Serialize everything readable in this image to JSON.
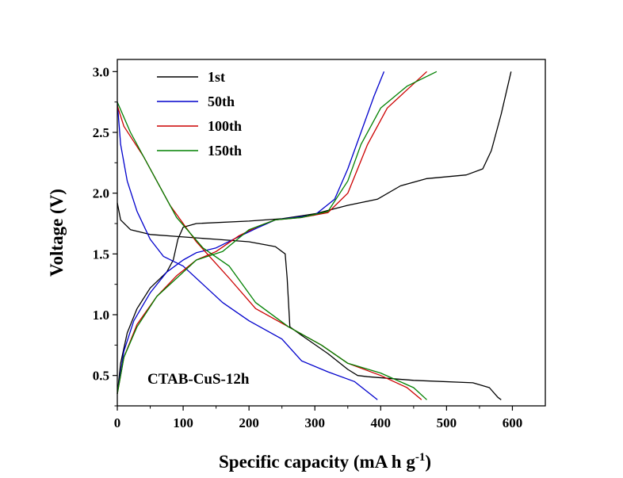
{
  "chart_data": {
    "type": "line",
    "xlabel": "Specific capacity (mA h g",
    "xlabel_sup": "-1",
    "xlabel_suffix": ")",
    "ylabel": "Voltage (V)",
    "xlim": [
      0,
      650
    ],
    "ylim": [
      0.25,
      3.1
    ],
    "xticks": [
      0,
      100,
      200,
      300,
      400,
      500,
      600
    ],
    "xtick_labels": [
      "0",
      "100",
      "200",
      "300",
      "400",
      "500",
      "600"
    ],
    "yticks": [
      0.5,
      1.0,
      1.5,
      2.0,
      2.5,
      3.0
    ],
    "ytick_labels": [
      "0.5",
      "1.0",
      "1.5",
      "2.0",
      "2.5",
      "3.0"
    ],
    "grid": false,
    "legend_position": "top-left",
    "annotation": "CTAB-CuS-12h",
    "series": [
      {
        "name": "1st",
        "color": "#000000",
        "discharge": [
          [
            0,
            1.92
          ],
          [
            5,
            1.78
          ],
          [
            20,
            1.7
          ],
          [
            50,
            1.66
          ],
          [
            100,
            1.64
          ],
          [
            150,
            1.62
          ],
          [
            200,
            1.6
          ],
          [
            240,
            1.56
          ],
          [
            255,
            1.5
          ],
          [
            258,
            1.3
          ],
          [
            260,
            1.1
          ],
          [
            262,
            0.9
          ],
          [
            280,
            0.83
          ],
          [
            320,
            0.68
          ],
          [
            350,
            0.55
          ],
          [
            365,
            0.5
          ],
          [
            380,
            0.49
          ],
          [
            450,
            0.46
          ],
          [
            540,
            0.44
          ],
          [
            565,
            0.4
          ],
          [
            578,
            0.32
          ],
          [
            583,
            0.3
          ]
        ],
        "charge": [
          [
            0,
            0.35
          ],
          [
            5,
            0.6
          ],
          [
            15,
            0.85
          ],
          [
            30,
            1.05
          ],
          [
            50,
            1.22
          ],
          [
            75,
            1.35
          ],
          [
            85,
            1.45
          ],
          [
            92,
            1.62
          ],
          [
            100,
            1.72
          ],
          [
            120,
            1.75
          ],
          [
            200,
            1.77
          ],
          [
            250,
            1.79
          ],
          [
            300,
            1.83
          ],
          [
            350,
            1.9
          ],
          [
            395,
            1.95
          ],
          [
            430,
            2.06
          ],
          [
            470,
            2.12
          ],
          [
            530,
            2.15
          ],
          [
            555,
            2.2
          ],
          [
            568,
            2.35
          ],
          [
            583,
            2.65
          ],
          [
            598,
            3.0
          ]
        ]
      },
      {
        "name": "50th",
        "color": "#0000cc",
        "discharge": [
          [
            0,
            2.75
          ],
          [
            5,
            2.4
          ],
          [
            15,
            2.1
          ],
          [
            30,
            1.85
          ],
          [
            50,
            1.62
          ],
          [
            70,
            1.48
          ],
          [
            100,
            1.4
          ],
          [
            130,
            1.25
          ],
          [
            160,
            1.1
          ],
          [
            200,
            0.95
          ],
          [
            250,
            0.8
          ],
          [
            280,
            0.62
          ],
          [
            320,
            0.53
          ],
          [
            360,
            0.45
          ],
          [
            395,
            0.3
          ]
        ],
        "charge": [
          [
            0,
            0.35
          ],
          [
            10,
            0.7
          ],
          [
            25,
            0.95
          ],
          [
            50,
            1.18
          ],
          [
            75,
            1.35
          ],
          [
            100,
            1.45
          ],
          [
            120,
            1.51
          ],
          [
            150,
            1.55
          ],
          [
            180,
            1.63
          ],
          [
            215,
            1.72
          ],
          [
            240,
            1.78
          ],
          [
            270,
            1.8
          ],
          [
            300,
            1.82
          ],
          [
            330,
            1.95
          ],
          [
            350,
            2.2
          ],
          [
            370,
            2.5
          ],
          [
            390,
            2.8
          ],
          [
            405,
            3.0
          ]
        ]
      },
      {
        "name": "100th",
        "color": "#cc0000",
        "discharge": [
          [
            0,
            2.72
          ],
          [
            10,
            2.55
          ],
          [
            40,
            2.3
          ],
          [
            80,
            1.9
          ],
          [
            120,
            1.6
          ],
          [
            170,
            1.3
          ],
          [
            210,
            1.05
          ],
          [
            260,
            0.9
          ],
          [
            310,
            0.75
          ],
          [
            350,
            0.6
          ],
          [
            400,
            0.5
          ],
          [
            440,
            0.4
          ],
          [
            462,
            0.3
          ]
        ],
        "charge": [
          [
            0,
            0.35
          ],
          [
            10,
            0.65
          ],
          [
            30,
            0.92
          ],
          [
            60,
            1.15
          ],
          [
            90,
            1.32
          ],
          [
            120,
            1.45
          ],
          [
            150,
            1.52
          ],
          [
            185,
            1.65
          ],
          [
            215,
            1.73
          ],
          [
            240,
            1.78
          ],
          [
            280,
            1.8
          ],
          [
            320,
            1.84
          ],
          [
            350,
            2.0
          ],
          [
            380,
            2.4
          ],
          [
            410,
            2.7
          ],
          [
            440,
            2.85
          ],
          [
            470,
            3.0
          ]
        ]
      },
      {
        "name": "150th",
        "color": "#008000",
        "discharge": [
          [
            0,
            2.75
          ],
          [
            20,
            2.5
          ],
          [
            50,
            2.2
          ],
          [
            90,
            1.8
          ],
          [
            130,
            1.55
          ],
          [
            170,
            1.4
          ],
          [
            210,
            1.1
          ],
          [
            260,
            0.9
          ],
          [
            310,
            0.75
          ],
          [
            350,
            0.6
          ],
          [
            400,
            0.52
          ],
          [
            450,
            0.4
          ],
          [
            470,
            0.3
          ]
        ],
        "charge": [
          [
            0,
            0.35
          ],
          [
            10,
            0.65
          ],
          [
            30,
            0.9
          ],
          [
            60,
            1.15
          ],
          [
            90,
            1.3
          ],
          [
            120,
            1.45
          ],
          [
            160,
            1.52
          ],
          [
            200,
            1.7
          ],
          [
            240,
            1.78
          ],
          [
            280,
            1.8
          ],
          [
            320,
            1.85
          ],
          [
            350,
            2.1
          ],
          [
            370,
            2.4
          ],
          [
            400,
            2.7
          ],
          [
            440,
            2.88
          ],
          [
            485,
            3.0
          ]
        ]
      }
    ]
  }
}
